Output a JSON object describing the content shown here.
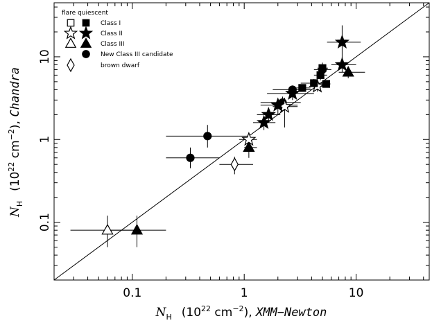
{
  "chart_data": {
    "type": "scatter",
    "x_scale": "log",
    "y_scale": "log",
    "xlim": [
      0.02,
      45
    ],
    "ylim": [
      0.02,
      45
    ],
    "x_ticks": [
      {
        "value": 0.1,
        "label": "0.1"
      },
      {
        "value": 1,
        "label": "1"
      },
      {
        "value": 10,
        "label": "10"
      }
    ],
    "y_ticks": [
      {
        "value": 0.1,
        "label": "0.1"
      },
      {
        "value": 1,
        "label": "1"
      },
      {
        "value": 10,
        "label": "10"
      }
    ],
    "xlabel": {
      "symbol": "N",
      "sub": "H",
      "units_pre": "(10",
      "units_exp": "22",
      "units_mid": " cm",
      "units_exp2": "−2",
      "units_post": "), ",
      "instrument": "XMM−Newton"
    },
    "ylabel": {
      "symbol": "N",
      "sub": "H",
      "units_pre": "(10",
      "units_exp": "22",
      "units_mid": " cm",
      "units_exp2": "−2",
      "units_post": "), ",
      "instrument": "Chandra"
    },
    "reference_line": "y = x",
    "legend": {
      "placement": "top-left",
      "header": "flare quiescent",
      "entries": [
        {
          "label": "Class I",
          "quiescent": "open-square",
          "flare": "filled-square"
        },
        {
          "label": "Class II",
          "quiescent": "open-star",
          "flare": "filled-star"
        },
        {
          "label": "Class III",
          "quiescent": "open-triangle",
          "flare": "filled-triangle"
        },
        {
          "label": "New Class III candidate",
          "quiescent": "",
          "flare": "filled-circle"
        },
        {
          "label": "brown dwarf",
          "quiescent": "open-diamond",
          "flare": ""
        }
      ]
    },
    "series": [
      {
        "marker": "open-triangle",
        "points": [
          {
            "x": 0.06,
            "y": 0.08,
            "xerr": [
              0.028,
              0.11
            ],
            "yerr": [
              0.05,
              0.12
            ]
          }
        ]
      },
      {
        "marker": "filled-triangle",
        "points": [
          {
            "x": 0.11,
            "y": 0.08,
            "xerr": [
              0.06,
              0.2
            ],
            "yerr": [
              0.05,
              0.12
            ]
          },
          {
            "x": 1.1,
            "y": 0.8,
            "xerr": [
              1.0,
              1.3
            ],
            "yerr": [
              0.6,
              1.0
            ]
          },
          {
            "x": 8.5,
            "y": 6.5,
            "xerr": [
              7.0,
              12.0
            ],
            "yerr": [
              5.5,
              7.5
            ]
          }
        ]
      },
      {
        "marker": "filled-circle",
        "points": [
          {
            "x": 0.33,
            "y": 0.6,
            "xerr": [
              0.2,
              0.6
            ],
            "yerr": [
              0.45,
              0.8
            ]
          },
          {
            "x": 0.47,
            "y": 1.1,
            "xerr": [
              0.2,
              1.1
            ],
            "yerr": [
              0.8,
              1.5
            ]
          },
          {
            "x": 2.2,
            "y": 2.8,
            "xerr": [
              1.4,
              3.2
            ],
            "yerr": [
              2.3,
              3.3
            ]
          },
          {
            "x": 2.7,
            "y": 4.0,
            "xerr": [
              1.8,
              4.0
            ],
            "yerr": [
              3.5,
              4.5
            ]
          },
          {
            "x": 5.0,
            "y": 7.0,
            "xerr": [
              4.2,
              6.0
            ],
            "yerr": [
              5.5,
              8.5
            ]
          }
        ]
      },
      {
        "marker": "open-diamond",
        "points": [
          {
            "x": 0.82,
            "y": 0.5,
            "xerr": [
              0.6,
              1.2
            ],
            "yerr": [
              0.38,
              0.62
            ]
          }
        ]
      },
      {
        "marker": "open-star",
        "points": [
          {
            "x": 1.1,
            "y": 1.0,
            "xerr": [
              0.9,
              1.3
            ],
            "yerr": [
              0.8,
              1.2
            ]
          },
          {
            "x": 2.3,
            "y": 2.5,
            "xerr": [
              1.8,
              3.0
            ],
            "yerr": [
              1.4,
              3.2
            ]
          },
          {
            "x": 4.5,
            "y": 4.4,
            "xerr": [
              3.8,
              5.5
            ],
            "yerr": [
              3.8,
              5.0
            ]
          }
        ]
      },
      {
        "marker": "filled-star",
        "points": [
          {
            "x": 1.5,
            "y": 1.6,
            "xerr": [
              1.2,
              1.9
            ],
            "yerr": [
              1.3,
              1.9
            ]
          },
          {
            "x": 1.65,
            "y": 2.0,
            "xerr": [
              1.3,
              2.1
            ],
            "yerr": [
              1.6,
              2.4
            ]
          },
          {
            "x": 2.0,
            "y": 2.6,
            "xerr": [
              1.4,
              3.0
            ],
            "yerr": [
              2.0,
              3.1
            ]
          },
          {
            "x": 2.7,
            "y": 3.6,
            "xerr": [
              1.6,
              4.2
            ],
            "yerr": [
              3.0,
              4.2
            ]
          },
          {
            "x": 7.5,
            "y": 8.0,
            "xerr": [
              6.0,
              10.0
            ],
            "yerr": [
              6.5,
              10.0
            ]
          },
          {
            "x": 7.5,
            "y": 15,
            "xerr": [
              5.5,
              11.0
            ],
            "yerr": [
              9.0,
              24.0
            ]
          }
        ]
      },
      {
        "marker": "filled-square",
        "points": [
          {
            "x": 3.3,
            "y": 4.2,
            "xerr": [
              2.8,
              3.9
            ],
            "yerr": [
              3.8,
              4.6
            ]
          },
          {
            "x": 4.2,
            "y": 4.8,
            "xerr": [
              3.2,
              5.5
            ],
            "yerr": [
              4.3,
              5.4
            ]
          },
          {
            "x": 4.8,
            "y": 6.0,
            "xerr": [
              4.2,
              5.5
            ],
            "yerr": [
              5.2,
              6.8
            ]
          },
          {
            "x": 5.0,
            "y": 7.3,
            "xerr": [
              4.5,
              5.6
            ],
            "yerr": [
              6.8,
              7.9
            ]
          },
          {
            "x": 5.4,
            "y": 4.7,
            "xerr": [
              5.0,
              5.9
            ],
            "yerr": [
              4.3,
              5.1
            ]
          }
        ]
      }
    ]
  }
}
